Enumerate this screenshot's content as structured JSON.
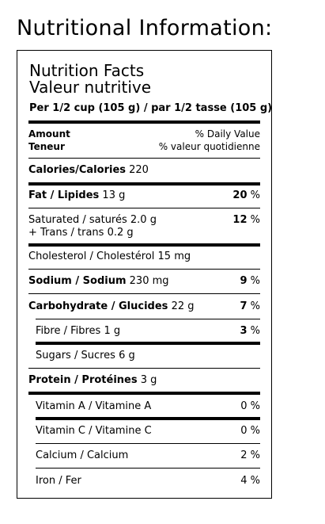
{
  "heading": "Nutritional Information:",
  "facts": {
    "title_en": "Nutrition Facts",
    "title_fr": "Valeur nutritive",
    "serving": "Per 1/2 cup (105 g) / par 1/2 tasse (105 g)",
    "amount_en": "Amount",
    "amount_fr": "Teneur",
    "dv_en": "% Daily Value",
    "dv_fr": "% valeur quotidienne",
    "calories_label": "Calories/Calories",
    "calories_value": "220",
    "fat_label": "Fat / Lipides",
    "fat_amount": "13 g",
    "fat_dv": "20",
    "saturated_label": "Saturated / saturés",
    "saturated_amount": "2.0 g",
    "trans_label": "+ Trans / trans",
    "trans_amount": "0.2 g",
    "sat_trans_dv": "12",
    "cholesterol_label": "Cholesterol / Cholestérol",
    "cholesterol_amount": "15 mg",
    "sodium_label": "Sodium / Sodium",
    "sodium_amount": "230 mg",
    "sodium_dv": "9",
    "carb_label": "Carbohydrate / Glucides",
    "carb_amount": "22 g",
    "carb_dv": "7",
    "fibre_label": "Fibre / Fibres",
    "fibre_amount": "1 g",
    "fibre_dv": "3",
    "sugars_label": "Sugars / Sucres",
    "sugars_amount": "6 g",
    "protein_label": "Protein / Protéines",
    "protein_amount": "3 g",
    "vita_label": "Vitamin A / Vitamine A",
    "vita_dv": "0",
    "vitc_label": "Vitamin C / Vitamine C",
    "vitc_dv": "0",
    "calcium_label": "Calcium / Calcium",
    "calcium_dv": "2",
    "iron_label": "Iron / Fer",
    "iron_dv": "4",
    "percent_sign": "%"
  }
}
